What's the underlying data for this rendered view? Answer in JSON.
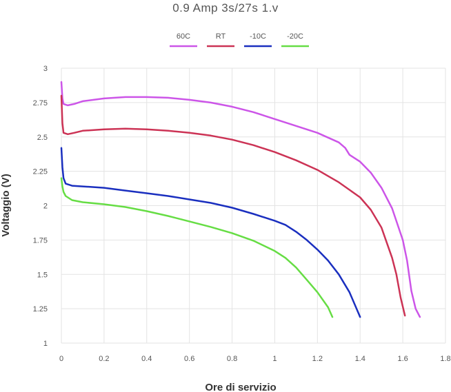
{
  "chart_data": {
    "type": "line",
    "title": "0.9 Amp 3s/27s 1.v",
    "xlabel": "Ore di servizio",
    "ylabel": "Voltaggio (V)",
    "xlim": [
      0,
      1.8
    ],
    "ylim": [
      1,
      3
    ],
    "x_ticks": [
      "0",
      "0.2",
      "0.4",
      "0.6",
      "0.8",
      "1",
      "1.2",
      "1.4",
      "1.6",
      "1.8"
    ],
    "y_ticks": [
      "1",
      "1.25",
      "1.5",
      "1.75",
      "2",
      "2.25",
      "2.5",
      "2.75",
      "3"
    ],
    "grid": true,
    "legend_position": "top",
    "series": [
      {
        "name": "60C",
        "color": "#cc55e8",
        "points": [
          [
            0,
            2.9
          ],
          [
            0.005,
            2.78
          ],
          [
            0.01,
            2.74
          ],
          [
            0.03,
            2.73
          ],
          [
            0.06,
            2.74
          ],
          [
            0.1,
            2.76
          ],
          [
            0.2,
            2.78
          ],
          [
            0.3,
            2.79
          ],
          [
            0.4,
            2.79
          ],
          [
            0.5,
            2.785
          ],
          [
            0.6,
            2.77
          ],
          [
            0.7,
            2.75
          ],
          [
            0.8,
            2.72
          ],
          [
            0.9,
            2.68
          ],
          [
            1.0,
            2.63
          ],
          [
            1.1,
            2.58
          ],
          [
            1.2,
            2.53
          ],
          [
            1.3,
            2.46
          ],
          [
            1.33,
            2.42
          ],
          [
            1.35,
            2.37
          ],
          [
            1.4,
            2.32
          ],
          [
            1.45,
            2.24
          ],
          [
            1.5,
            2.13
          ],
          [
            1.55,
            1.98
          ],
          [
            1.6,
            1.75
          ],
          [
            1.62,
            1.6
          ],
          [
            1.64,
            1.38
          ],
          [
            1.66,
            1.25
          ],
          [
            1.68,
            1.19
          ]
        ]
      },
      {
        "name": "RT",
        "color": "#cc3355",
        "points": [
          [
            0,
            2.8
          ],
          [
            0.005,
            2.6
          ],
          [
            0.01,
            2.53
          ],
          [
            0.03,
            2.52
          ],
          [
            0.06,
            2.53
          ],
          [
            0.1,
            2.545
          ],
          [
            0.2,
            2.555
          ],
          [
            0.3,
            2.56
          ],
          [
            0.4,
            2.555
          ],
          [
            0.5,
            2.545
          ],
          [
            0.6,
            2.53
          ],
          [
            0.7,
            2.51
          ],
          [
            0.8,
            2.48
          ],
          [
            0.9,
            2.44
          ],
          [
            1.0,
            2.39
          ],
          [
            1.1,
            2.33
          ],
          [
            1.2,
            2.26
          ],
          [
            1.3,
            2.17
          ],
          [
            1.4,
            2.06
          ],
          [
            1.45,
            1.97
          ],
          [
            1.5,
            1.84
          ],
          [
            1.55,
            1.62
          ],
          [
            1.57,
            1.5
          ],
          [
            1.59,
            1.33
          ],
          [
            1.61,
            1.2
          ]
        ]
      },
      {
        "name": "-10C",
        "color": "#1a2fbf",
        "points": [
          [
            0,
            2.42
          ],
          [
            0.005,
            2.28
          ],
          [
            0.01,
            2.2
          ],
          [
            0.02,
            2.16
          ],
          [
            0.05,
            2.145
          ],
          [
            0.1,
            2.14
          ],
          [
            0.2,
            2.13
          ],
          [
            0.3,
            2.11
          ],
          [
            0.4,
            2.09
          ],
          [
            0.5,
            2.07
          ],
          [
            0.6,
            2.045
          ],
          [
            0.7,
            2.02
          ],
          [
            0.8,
            1.985
          ],
          [
            0.9,
            1.94
          ],
          [
            1.0,
            1.89
          ],
          [
            1.05,
            1.86
          ],
          [
            1.1,
            1.81
          ],
          [
            1.15,
            1.75
          ],
          [
            1.2,
            1.68
          ],
          [
            1.25,
            1.6
          ],
          [
            1.3,
            1.5
          ],
          [
            1.35,
            1.37
          ],
          [
            1.4,
            1.19
          ]
        ]
      },
      {
        "name": "-20C",
        "color": "#66dd44",
        "points": [
          [
            0,
            2.2
          ],
          [
            0.005,
            2.14
          ],
          [
            0.01,
            2.1
          ],
          [
            0.02,
            2.07
          ],
          [
            0.05,
            2.04
          ],
          [
            0.1,
            2.025
          ],
          [
            0.2,
            2.01
          ],
          [
            0.3,
            1.99
          ],
          [
            0.4,
            1.96
          ],
          [
            0.5,
            1.925
          ],
          [
            0.6,
            1.885
          ],
          [
            0.7,
            1.845
          ],
          [
            0.8,
            1.8
          ],
          [
            0.9,
            1.745
          ],
          [
            1.0,
            1.67
          ],
          [
            1.05,
            1.62
          ],
          [
            1.1,
            1.55
          ],
          [
            1.15,
            1.46
          ],
          [
            1.2,
            1.37
          ],
          [
            1.25,
            1.26
          ],
          [
            1.27,
            1.19
          ]
        ]
      }
    ]
  }
}
